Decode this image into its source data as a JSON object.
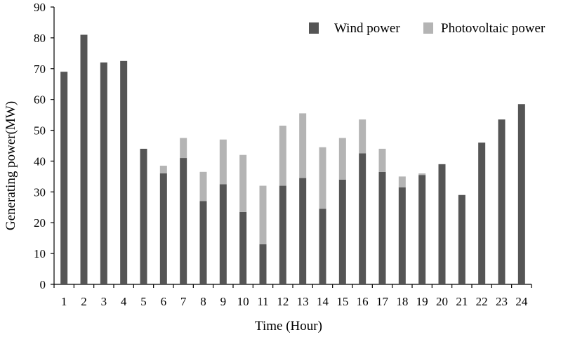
{
  "chart_data": {
    "type": "bar",
    "stacked": true,
    "xlabel": "Time (Hour)",
    "ylabel": "Generating power(MW)",
    "ylim": [
      0,
      90
    ],
    "yticks": [
      0,
      10,
      20,
      30,
      40,
      50,
      60,
      70,
      80,
      90
    ],
    "grid": false,
    "legend_position": "top-right",
    "categories": [
      "1",
      "2",
      "3",
      "4",
      "5",
      "6",
      "7",
      "8",
      "9",
      "10",
      "11",
      "12",
      "13",
      "14",
      "15",
      "16",
      "17",
      "18",
      "19",
      "20",
      "21",
      "22",
      "23",
      "24"
    ],
    "series": [
      {
        "name": "Wind power",
        "color": "#555555",
        "values": [
          69,
          81,
          72,
          72.5,
          44,
          36,
          41,
          27,
          32.5,
          23.5,
          13,
          32,
          34.5,
          24.5,
          34,
          42.5,
          36.5,
          31.5,
          35.5,
          39,
          29,
          46,
          53.5,
          58.5
        ]
      },
      {
        "name": "Photovoltaic power",
        "color": "#b4b4b4",
        "values": [
          0,
          0,
          0,
          0,
          0,
          2.5,
          6.5,
          9.5,
          14.5,
          18.5,
          19,
          19.5,
          21,
          20,
          13.5,
          11,
          7.5,
          3.5,
          0.5,
          0,
          0,
          0,
          0,
          0
        ]
      }
    ]
  }
}
